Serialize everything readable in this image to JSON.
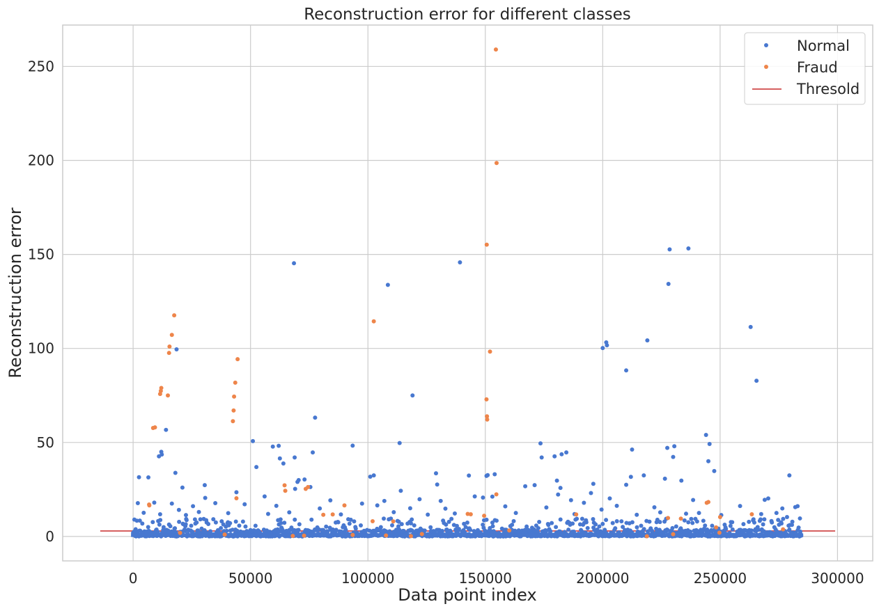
{
  "chart_data": {
    "type": "scatter",
    "title": "Reconstruction error for different classes",
    "xlabel": "Data point index",
    "ylabel": "Reconstruction error",
    "xlim": [
      -30000,
      315000
    ],
    "ylim": [
      -13,
      272
    ],
    "xticks": [
      0,
      50000,
      100000,
      150000,
      200000,
      250000,
      300000
    ],
    "xtick_labels": [
      "0",
      "50000",
      "100000",
      "150000",
      "200000",
      "250000",
      "300000"
    ],
    "yticks": [
      0,
      50,
      100,
      150,
      200,
      250
    ],
    "ytick_labels": [
      "0",
      "50",
      "100",
      "150",
      "200",
      "250"
    ],
    "grid": true,
    "legend_position": "top-right",
    "threshold": {
      "name": "Thresold",
      "value": 2.9,
      "x_range": [
        -14000,
        299000
      ],
      "color": "#d65f5f"
    },
    "series": [
      {
        "name": "Normal",
        "color": "#4878d0",
        "points": [
          [
            68500,
            145.3
          ],
          [
            139200,
            145.8
          ],
          [
            108500,
            133.8
          ],
          [
            228500,
            152.7
          ],
          [
            236500,
            153.2
          ],
          [
            228000,
            134.3
          ],
          [
            263000,
            111.4
          ],
          [
            265500,
            82.8
          ],
          [
            219000,
            104.3
          ],
          [
            201500,
            103.2
          ],
          [
            201800,
            101.7
          ],
          [
            200000,
            100.2
          ],
          [
            210000,
            88.3
          ],
          [
            18500,
            99.5
          ],
          [
            119000,
            75.0
          ],
          [
            77500,
            63.2
          ],
          [
            14000,
            56.7
          ],
          [
            51000,
            50.7
          ],
          [
            113500,
            49.7
          ],
          [
            93500,
            48.3
          ],
          [
            62000,
            48.2
          ],
          [
            59500,
            47.8
          ],
          [
            173500,
            49.5
          ],
          [
            184500,
            44.7
          ],
          [
            182500,
            43.7
          ],
          [
            179500,
            42.6
          ],
          [
            174000,
            42.0
          ],
          [
            212500,
            46.2
          ],
          [
            227500,
            47.1
          ],
          [
            230500,
            48.0
          ],
          [
            244000,
            54.0
          ],
          [
            245500,
            49.2
          ],
          [
            245000,
            40.0
          ],
          [
            230000,
            42.3
          ],
          [
            12000,
            45.0
          ],
          [
            11000,
            42.6
          ],
          [
            12200,
            43.6
          ],
          [
            62500,
            41.5
          ],
          [
            64000,
            38.8
          ],
          [
            68800,
            42.0
          ],
          [
            76500,
            44.7
          ],
          [
            52500,
            36.9
          ],
          [
            247500,
            34.8
          ],
          [
            18000,
            33.8
          ],
          [
            2500,
            31.5
          ],
          [
            6500,
            31.4
          ],
          [
            101000,
            31.8
          ],
          [
            102500,
            32.5
          ],
          [
            129000,
            33.6
          ],
          [
            129500,
            27.6
          ],
          [
            143000,
            32.4
          ],
          [
            150500,
            32.2
          ],
          [
            151000,
            32.6
          ],
          [
            154000,
            33.1
          ],
          [
            212000,
            31.7
          ],
          [
            217500,
            32.5
          ],
          [
            226500,
            30.7
          ],
          [
            233500,
            29.7
          ],
          [
            279500,
            32.5
          ],
          [
            30500,
            27.3
          ],
          [
            70000,
            29.0
          ],
          [
            70500,
            30.0
          ],
          [
            73000,
            30.3
          ],
          [
            167000,
            26.7
          ],
          [
            180500,
            29.7
          ],
          [
            182000,
            25.8
          ],
          [
            196000,
            28.0
          ],
          [
            210000,
            27.5
          ],
          [
            21000,
            26.0
          ],
          [
            30700,
            20.5
          ],
          [
            44000,
            23.5
          ],
          [
            56000,
            21.3
          ],
          [
            69000,
            25.3
          ],
          [
            75500,
            26.3
          ],
          [
            84000,
            19.2
          ],
          [
            97500,
            17.5
          ],
          [
            107000,
            18.9
          ],
          [
            114000,
            24.3
          ],
          [
            122000,
            19.8
          ],
          [
            131000,
            18.9
          ],
          [
            145500,
            21.3
          ],
          [
            149000,
            20.7
          ],
          [
            153000,
            21.2
          ],
          [
            171000,
            27.3
          ],
          [
            181000,
            22.3
          ],
          [
            186500,
            19.3
          ],
          [
            192000,
            17.9
          ],
          [
            195000,
            23.1
          ],
          [
            203000,
            20.2
          ],
          [
            222000,
            15.5
          ],
          [
            238500,
            19.4
          ],
          [
            269000,
            19.5
          ],
          [
            270500,
            20.2
          ],
          [
            274000,
            12.5
          ],
          [
            282000,
            15.6
          ],
          [
            283000,
            16.1
          ],
          [
            2000,
            17.7
          ],
          [
            9000,
            18.0
          ],
          [
            16500,
            17.5
          ],
          [
            19500,
            14.1
          ],
          [
            25500,
            16.1
          ],
          [
            35000,
            17.7
          ],
          [
            47500,
            17.1
          ],
          [
            61000,
            16.3
          ],
          [
            79500,
            14.9
          ],
          [
            104000,
            16.5
          ],
          [
            118000,
            15.0
          ],
          [
            133000,
            14.8
          ],
          [
            158500,
            16.0
          ],
          [
            176000,
            15.4
          ],
          [
            199500,
            14.3
          ],
          [
            206000,
            16.3
          ],
          [
            224500,
            12.8
          ],
          [
            241000,
            12.5
          ],
          [
            258500,
            16.2
          ],
          [
            276500,
            14.9
          ],
          [
            4500,
            12.6
          ],
          [
            11500,
            11.8
          ],
          [
            22500,
            11.4
          ],
          [
            28000,
            13.0
          ],
          [
            40500,
            12.4
          ],
          [
            57500,
            12.0
          ],
          [
            66500,
            12.8
          ],
          [
            88500,
            11.7
          ],
          [
            111000,
            12.9
          ],
          [
            125500,
            11.6
          ],
          [
            137000,
            12.2
          ],
          [
            163000,
            12.5
          ],
          [
            188000,
            11.9
          ],
          [
            214500,
            11.5
          ],
          [
            235500,
            12.1
          ],
          [
            250500,
            11.4
          ],
          [
            267500,
            11.9
          ],
          [
            278500,
            10.3
          ],
          [
            284000,
            9.6
          ]
        ]
      },
      {
        "name": "Fraud",
        "color": "#ee854a",
        "points": [
          [
            154500,
            259.0
          ],
          [
            154800,
            198.6
          ],
          [
            150600,
            155.2
          ],
          [
            17500,
            117.6
          ],
          [
            102500,
            114.4
          ],
          [
            16500,
            107.2
          ],
          [
            15500,
            101.0
          ],
          [
            15300,
            97.6
          ],
          [
            152000,
            98.3
          ],
          [
            44500,
            94.3
          ],
          [
            43500,
            81.8
          ],
          [
            12000,
            79.0
          ],
          [
            11800,
            77.4
          ],
          [
            11500,
            75.8
          ],
          [
            14800,
            75.0
          ],
          [
            43000,
            74.4
          ],
          [
            150500,
            72.9
          ],
          [
            42800,
            67.0
          ],
          [
            150700,
            63.9
          ],
          [
            150800,
            62.2
          ],
          [
            42500,
            61.3
          ],
          [
            8500,
            57.7
          ],
          [
            9300,
            58.0
          ],
          [
            64500,
            27.2
          ],
          [
            74500,
            26.3
          ],
          [
            44000,
            20.3
          ],
          [
            64800,
            24.3
          ],
          [
            73500,
            25.3
          ],
          [
            154700,
            22.4
          ],
          [
            6800,
            17.0
          ],
          [
            6900,
            16.5
          ],
          [
            244300,
            17.9
          ],
          [
            245000,
            18.3
          ],
          [
            149500,
            11.0
          ],
          [
            143800,
            11.8
          ],
          [
            142500,
            12.0
          ],
          [
            102000,
            8.1
          ],
          [
            110800,
            8.0
          ],
          [
            233300,
            9.5
          ],
          [
            227800,
            9.8
          ],
          [
            250000,
            10.3
          ],
          [
            248300,
            4.8
          ],
          [
            249700,
            2.0
          ],
          [
            263500,
            11.8
          ],
          [
            188700,
            11.7
          ],
          [
            90000,
            16.5
          ],
          [
            81000,
            11.5
          ],
          [
            85000,
            11.7
          ],
          [
            20000,
            1.9
          ],
          [
            39000,
            1.0
          ],
          [
            68000,
            0.3
          ],
          [
            72800,
            0.4
          ],
          [
            93500,
            0.8
          ],
          [
            107700,
            0.5
          ],
          [
            118300,
            0.2
          ],
          [
            123000,
            1.3
          ],
          [
            160200,
            3.2
          ],
          [
            218800,
            0.1
          ],
          [
            230000,
            1.2
          ],
          [
            276800,
            3.8
          ]
        ]
      }
    ]
  }
}
